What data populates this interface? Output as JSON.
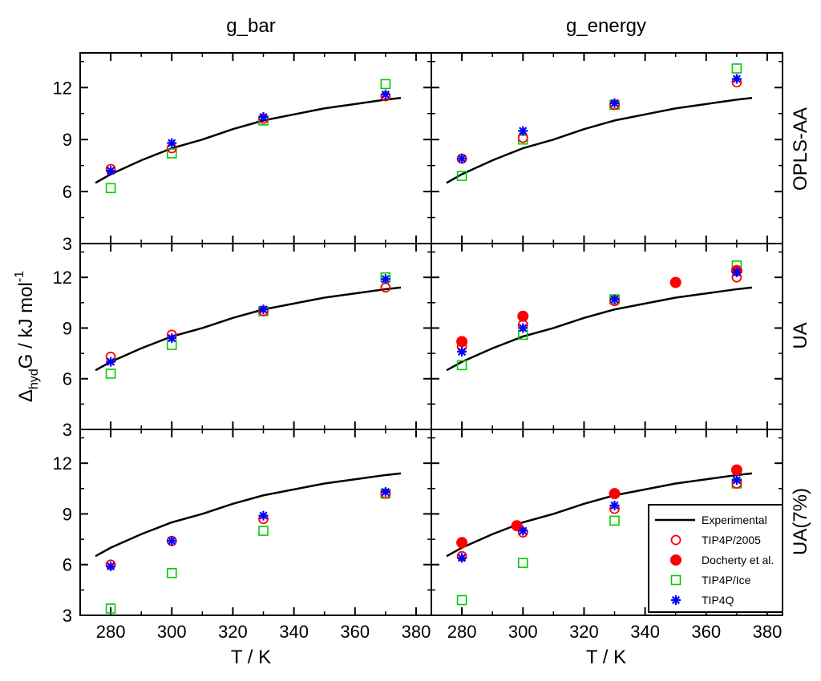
{
  "figure": {
    "ylabel_main": "Δ",
    "ylabel_sub": "hyd",
    "ylabel_rest": "G / kJ mol",
    "ylabel_sup": "-1",
    "col_titles": [
      "g_bar",
      "g_energy"
    ],
    "row_titles": [
      "OPLS-AA",
      "UA",
      "UA(7%)"
    ],
    "xlabel": "T / K"
  },
  "colors": {
    "experimental": "#000000",
    "tip4p2005": "#ff0000",
    "docherty": "#ff0000",
    "tip4pice": "#00cc00",
    "tip4q": "#0000ff"
  },
  "chart_data": {
    "type": "scatter",
    "title": "",
    "xlabel": "T / K",
    "ylabel": "Δhyd G / kJ mol-1",
    "xlim": [
      270,
      385
    ],
    "ylim": [
      3,
      14
    ],
    "xticks": [
      280,
      300,
      320,
      340,
      360,
      380
    ],
    "yticks": [
      3,
      6,
      9,
      12
    ],
    "legend": {
      "position": "bottom-right",
      "entries": [
        "Experimental",
        "TIP4P/2005",
        "Docherty et al.",
        "TIP4P/Ice",
        "TIP4Q"
      ]
    },
    "experimental": {
      "x": [
        275,
        280,
        290,
        300,
        310,
        320,
        330,
        340,
        350,
        360,
        370,
        375
      ],
      "y": [
        6.5,
        7.0,
        7.8,
        8.5,
        9.0,
        9.6,
        10.1,
        10.45,
        10.8,
        11.05,
        11.3,
        11.4
      ]
    },
    "panels": [
      {
        "row": "OPLS-AA",
        "col": "g_bar",
        "series": [
          {
            "name": "TIP4P/2005",
            "x": [
              280,
              300,
              330,
              370
            ],
            "y": [
              7.3,
              8.5,
              10.2,
              11.5
            ]
          },
          {
            "name": "TIP4P/Ice",
            "x": [
              280,
              300,
              330,
              370
            ],
            "y": [
              6.2,
              8.2,
              10.1,
              12.2
            ]
          },
          {
            "name": "TIP4Q",
            "x": [
              280,
              300,
              330,
              370
            ],
            "y": [
              7.2,
              8.8,
              10.3,
              11.6
            ]
          }
        ]
      },
      {
        "row": "OPLS-AA",
        "col": "g_energy",
        "series": [
          {
            "name": "TIP4P/2005",
            "x": [
              280,
              300,
              330,
              370
            ],
            "y": [
              7.9,
              9.1,
              11.0,
              12.3
            ]
          },
          {
            "name": "TIP4P/Ice",
            "x": [
              280,
              300,
              330,
              370
            ],
            "y": [
              6.9,
              9.0,
              11.0,
              13.1
            ]
          },
          {
            "name": "TIP4Q",
            "x": [
              280,
              300,
              330,
              370
            ],
            "y": [
              7.9,
              9.5,
              11.1,
              12.5
            ]
          }
        ]
      },
      {
        "row": "UA",
        "col": "g_bar",
        "series": [
          {
            "name": "TIP4P/2005",
            "x": [
              280,
              300,
              330,
              370
            ],
            "y": [
              7.3,
              8.6,
              10.0,
              11.4
            ]
          },
          {
            "name": "TIP4P/Ice",
            "x": [
              280,
              300,
              330,
              370
            ],
            "y": [
              6.3,
              8.0,
              10.0,
              12.0
            ]
          },
          {
            "name": "TIP4Q",
            "x": [
              280,
              300,
              330,
              370
            ],
            "y": [
              7.0,
              8.4,
              10.1,
              11.9
            ]
          }
        ]
      },
      {
        "row": "UA",
        "col": "g_energy",
        "series": [
          {
            "name": "TIP4P/2005",
            "x": [
              280,
              300,
              330,
              370
            ],
            "y": [
              7.9,
              9.2,
              10.6,
              12.0
            ]
          },
          {
            "name": "Docherty et al.",
            "x": [
              280,
              300,
              350,
              370
            ],
            "y": [
              8.2,
              9.7,
              11.7,
              12.4
            ]
          },
          {
            "name": "TIP4P/Ice",
            "x": [
              280,
              300,
              330,
              370
            ],
            "y": [
              6.8,
              8.6,
              10.7,
              12.7
            ]
          },
          {
            "name": "TIP4Q",
            "x": [
              280,
              300,
              330,
              370
            ],
            "y": [
              7.6,
              9.0,
              10.7,
              12.3
            ]
          }
        ]
      },
      {
        "row": "UA(7%)",
        "col": "g_bar",
        "series": [
          {
            "name": "TIP4P/2005",
            "x": [
              280,
              300,
              330,
              370
            ],
            "y": [
              6.0,
              7.4,
              8.7,
              10.2
            ]
          },
          {
            "name": "TIP4P/Ice",
            "x": [
              280,
              300,
              330,
              370
            ],
            "y": [
              3.4,
              5.5,
              8.0,
              10.2
            ]
          },
          {
            "name": "TIP4Q",
            "x": [
              280,
              300,
              330,
              370
            ],
            "y": [
              5.9,
              7.4,
              8.9,
              10.3
            ]
          }
        ]
      },
      {
        "row": "UA(7%)",
        "col": "g_energy",
        "series": [
          {
            "name": "TIP4P/2005",
            "x": [
              280,
              300,
              330,
              370
            ],
            "y": [
              6.5,
              7.9,
              9.3,
              10.8
            ]
          },
          {
            "name": "Docherty et al.",
            "x": [
              280,
              298,
              330,
              370
            ],
            "y": [
              7.3,
              8.3,
              10.2,
              11.6
            ]
          },
          {
            "name": "TIP4P/Ice",
            "x": [
              280,
              300,
              330,
              370
            ],
            "y": [
              3.9,
              6.1,
              8.6,
              10.8
            ]
          },
          {
            "name": "TIP4Q",
            "x": [
              280,
              300,
              330,
              370
            ],
            "y": [
              6.4,
              8.0,
              9.5,
              11.0
            ]
          }
        ]
      }
    ]
  }
}
